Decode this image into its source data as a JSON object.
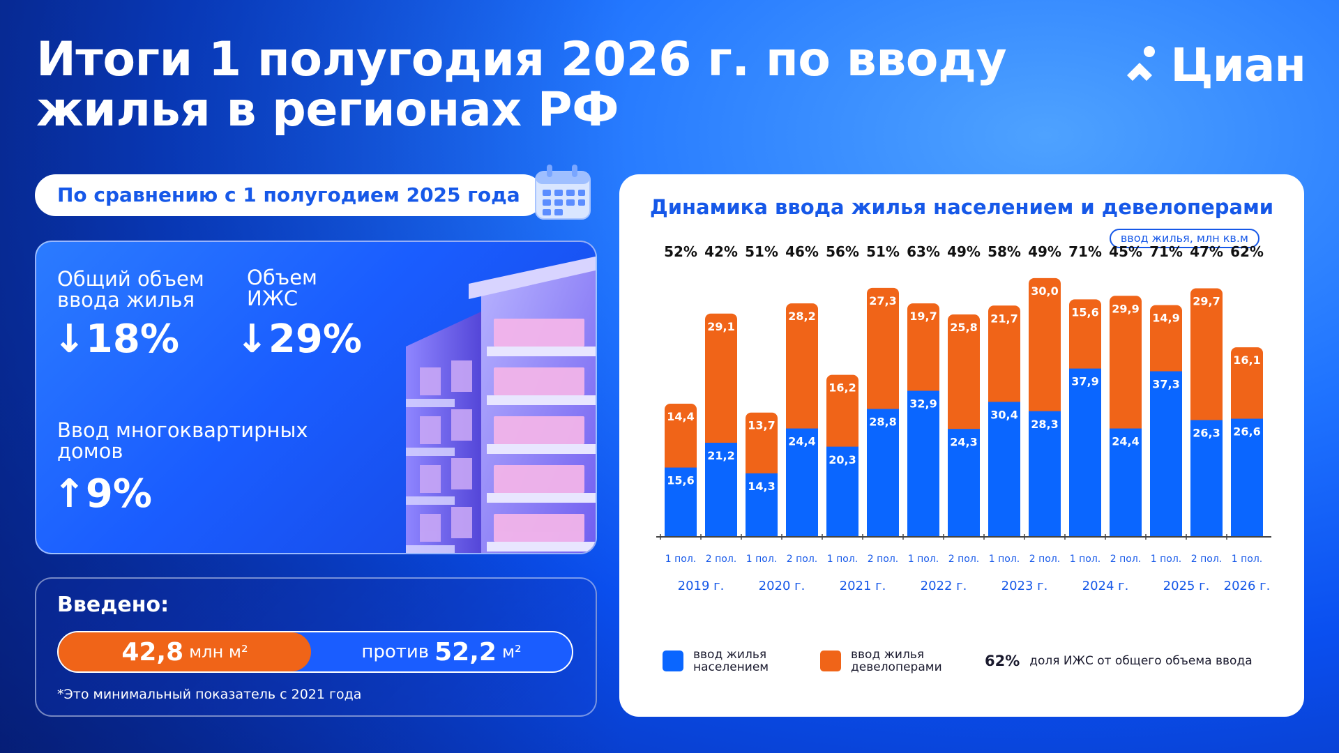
{
  "header": {
    "title": "Итоги 1 полугодия 2026 г. по вводу жилья в регионах РФ",
    "logo_text": "Циан"
  },
  "comparison": {
    "pill_label": "По сравнению с 1 полугодием 2025 года",
    "stats": [
      {
        "label": "Общий объем ввода жилья",
        "value": "↓18%"
      },
      {
        "label": "Объем ИЖС",
        "value": "↓29%"
      },
      {
        "label": "Ввод многоквартирных домов",
        "value": "↑9%"
      }
    ]
  },
  "introduced": {
    "label": "Введено:",
    "current_value": "42,8",
    "current_unit": "млн м²",
    "vs_label": "против",
    "previous_value": "52,2",
    "previous_unit": "м²",
    "footnote": "*Это минимальный показатель с 2021 года"
  },
  "colors": {
    "population": "#0a66ff",
    "developers": "#f06418",
    "accent": "#1658e8"
  },
  "chart_data": {
    "type": "bar",
    "stacked": true,
    "title": "Динамика ввода жилья населением и девелоперами",
    "unit": "ввод жилья, млн кв.м",
    "categories": [
      "1 пол.",
      "2 пол.",
      "1 пол.",
      "2 пол.",
      "1 пол.",
      "2 пол.",
      "1 пол.",
      "2 пол.",
      "1 пол.",
      "2 пол.",
      "1 пол.",
      "2 пол.",
      "1 пол.",
      "2 пол.",
      "1 пол."
    ],
    "years": [
      "2019 г.",
      "2020 г.",
      "2021 г.",
      "2022 г.",
      "2023 г.",
      "2024 г.",
      "2025 г.",
      "2026 г."
    ],
    "series": [
      {
        "name": "ввод жилья населением",
        "values": [
          15.6,
          21.2,
          14.3,
          24.4,
          20.3,
          28.8,
          32.9,
          24.3,
          30.4,
          28.3,
          37.9,
          24.4,
          37.3,
          26.3,
          26.6
        ]
      },
      {
        "name": "ввод жилья девелоперами",
        "values": [
          14.4,
          29.1,
          13.7,
          28.2,
          16.2,
          27.3,
          19.7,
          25.8,
          21.7,
          30.0,
          15.6,
          29.9,
          14.9,
          29.7,
          16.1
        ]
      }
    ],
    "value_labels_pop": [
      "15,6",
      "21,2",
      "14,3",
      "24,4",
      "20,3",
      "28,8",
      "32,9",
      "24,3",
      "30,4",
      "28,3",
      "37,9",
      "24,4",
      "37,3",
      "26,3",
      "26,6"
    ],
    "value_labels_dev": [
      "14,4",
      "29,1",
      "13,7",
      "28,2",
      "16,2",
      "27,3",
      "19,7",
      "25,8",
      "21,7",
      "30,0",
      "15,6",
      "29,9",
      "14,9",
      "29,7",
      "16,1"
    ],
    "shares": [
      "52%",
      "42%",
      "51%",
      "46%",
      "56%",
      "51%",
      "63%",
      "49%",
      "58%",
      "49%",
      "71%",
      "45%",
      "71%",
      "47%",
      "62%"
    ],
    "ylim": [
      0,
      60
    ],
    "legend": {
      "population": "ввод жилья населением",
      "developers": "ввод жилья девелоперами",
      "share_example": "62%",
      "share_text": "доля ИЖС от общего объема ввода"
    }
  }
}
